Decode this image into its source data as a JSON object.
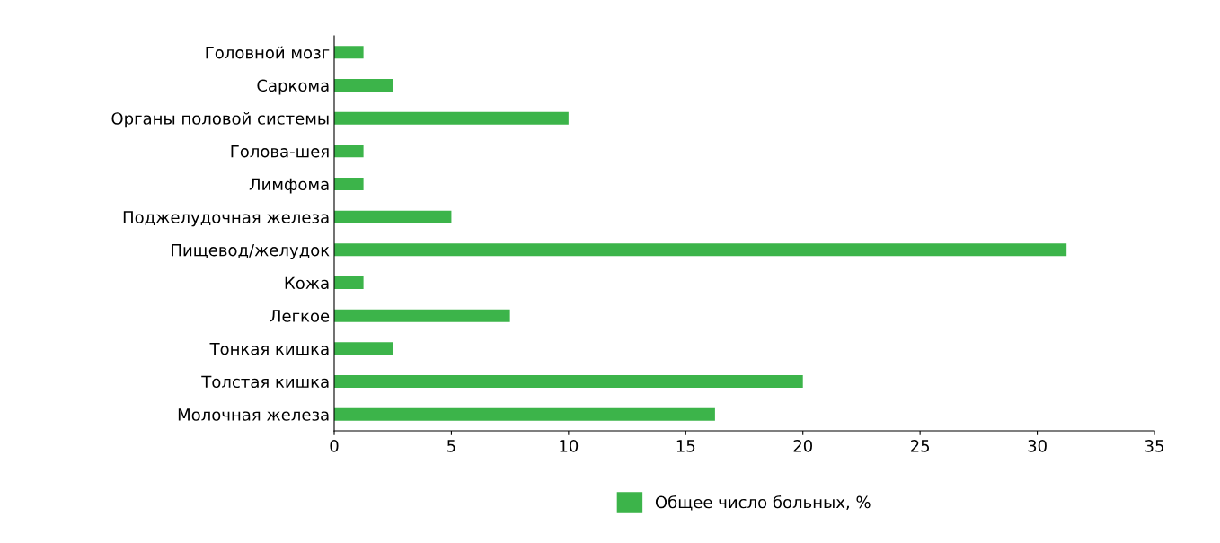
{
  "chart_data": {
    "type": "bar",
    "orientation": "horizontal",
    "categories": [
      "Головной мозг",
      "Саркома",
      "Органы половой системы",
      "Голова-шея",
      "Лимфома",
      "Поджелудочная железа",
      "Пищевод/желудок",
      "Кожа",
      "Легкое",
      "Тонкая кишка",
      "Толстая кишка",
      "Молочная железа"
    ],
    "series": [
      {
        "name": "Общее число больных, %",
        "color": "#3cb44a",
        "values": [
          1.25,
          2.5,
          10,
          1.25,
          1.25,
          5,
          31.25,
          1.25,
          7.5,
          2.5,
          20,
          16.25
        ]
      }
    ],
    "xlim": [
      0,
      35
    ],
    "xticks": [
      0,
      5,
      10,
      15,
      20,
      25,
      30,
      35
    ],
    "grid": false,
    "legend": "bottom"
  }
}
